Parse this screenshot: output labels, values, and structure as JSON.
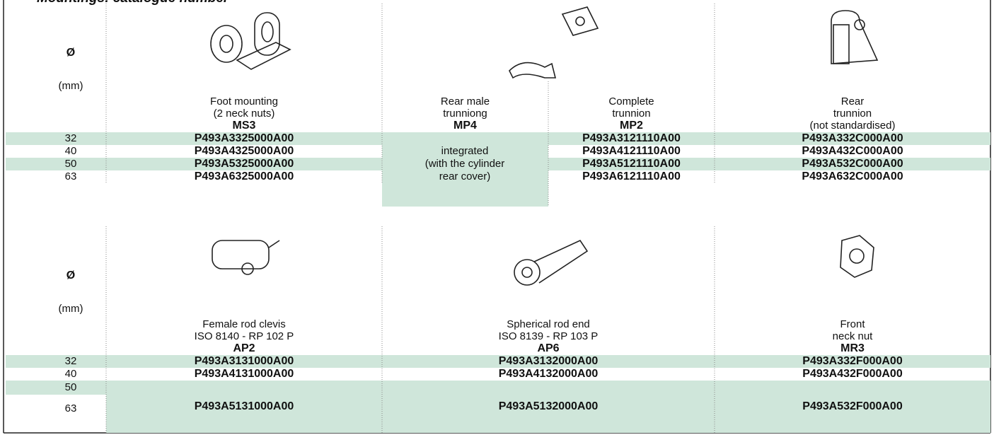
{
  "header": {
    "title": "Mountings: catalogue number"
  },
  "tables": [
    {
      "diameter_symbol": "Ø",
      "diameter_unit": "(mm)",
      "columns": [
        {
          "label_lines": [
            "Foot mounting",
            "(2 neck nuts)"
          ],
          "code": "MS3"
        },
        {
          "label_lines": [
            "Rear male",
            "trunniong"
          ],
          "code": "MP4"
        },
        {
          "label_lines": [
            "Complete",
            "trunnion"
          ],
          "code": "MP2"
        },
        {
          "label_lines": [
            "Rear",
            "trunnion",
            "(not standardised)"
          ]
        }
      ],
      "merged_cell": {
        "lines": [
          "integrated",
          "(with the cylinder",
          "rear cover)"
        ]
      },
      "rows": [
        {
          "diameter": 32,
          "cells": [
            "P493A3325000A00",
            "P493A3121110A00",
            "P493A332C000A00"
          ]
        },
        {
          "diameter": 40,
          "cells": [
            "P493A4325000A00",
            "P493A4121110A00",
            "P493A432C000A00"
          ]
        },
        {
          "diameter": 50,
          "cells": [
            "P493A5325000A00",
            "P493A5121110A00",
            "P493A532C000A00"
          ]
        },
        {
          "diameter": 63,
          "cells": [
            "P493A6325000A00",
            "P493A6121110A00",
            "P493A632C000A00"
          ]
        }
      ]
    },
    {
      "diameter_symbol": "Ø",
      "diameter_unit": "(mm)",
      "columns": [
        {
          "label_lines": [
            "Female rod clevis",
            "ISO 8140 - RP 102 P"
          ],
          "code": "AP2"
        },
        {
          "label_lines": [
            "Spherical rod end",
            "ISO 8139 - RP 103 P"
          ],
          "code": "AP6"
        },
        {
          "label_lines": [
            "Front",
            "neck nut"
          ],
          "code": "MR3"
        }
      ],
      "rows": [
        {
          "diameter": 32,
          "cells": [
            "P493A3131000A00",
            "P493A3132000A00",
            "P493A332F000A00"
          ]
        },
        {
          "diameter": 40,
          "cells": [
            "P493A4131000A00",
            "P493A4132000A00",
            "P493A432F000A00"
          ]
        },
        {
          "diameters": [
            50,
            63
          ],
          "cells": [
            "P493A5131000A00",
            "P493A5132000A00",
            "P493A532F000A00"
          ]
        }
      ]
    }
  ]
}
